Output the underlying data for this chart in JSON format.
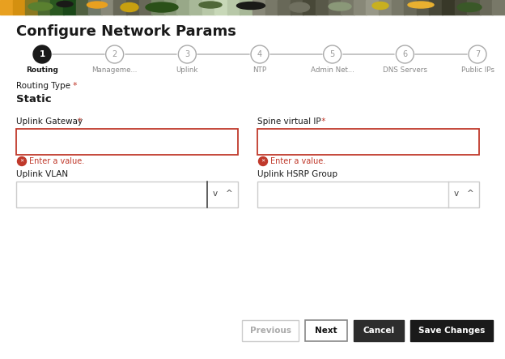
{
  "title": "Configure Network Params",
  "bg_color": "#ffffff",
  "steps": [
    {
      "num": "1",
      "label": "Routing",
      "active": true
    },
    {
      "num": "2",
      "label": "Manageme...",
      "active": false
    },
    {
      "num": "3",
      "label": "Uplink",
      "active": false
    },
    {
      "num": "4",
      "label": "NTP",
      "active": false
    },
    {
      "num": "5",
      "label": "Admin Net...",
      "active": false
    },
    {
      "num": "6",
      "label": "DNS Servers",
      "active": false
    },
    {
      "num": "7",
      "label": "Public IPs",
      "active": false
    }
  ],
  "routing_type_label": "Routing Type",
  "routing_type_asterisk": " *",
  "routing_type_value": "Static",
  "field_left_1_label": "Uplink Gateway",
  "field_left_1_error_msg": "Enter a value.",
  "field_right_1_label": "Spine virtual IP",
  "field_right_1_error_msg": "Enter a value.",
  "field_left_2_label": "Uplink VLAN",
  "field_right_2_label": "Uplink HSRP Group",
  "error_color": "#c0392b",
  "active_step_bg": "#1a1a1a",
  "active_step_text": "#ffffff",
  "inactive_step_border": "#aaaaaa",
  "inactive_step_text": "#999999",
  "inactive_label_color": "#888888",
  "active_label_color": "#1a1a1a",
  "line_color": "#bbbbbb",
  "text_color_dark": "#1a1a1a",
  "field_border_error": "#c0392b",
  "field_border_normal": "#cccccc",
  "spinner_divider_color": "#333333",
  "spinner_arrow_color": "#444444",
  "btn_prev_text": "#aaaaaa",
  "btn_prev_border": "#cccccc",
  "btn_next_text": "#111111",
  "btn_next_border": "#888888",
  "btn_cancel_bg": "#2d2d2d",
  "btn_cancel_text": "#ffffff",
  "btn_save_bg": "#1a1a1a",
  "btn_save_text": "#ffffff",
  "top_bar_colors": [
    "#e8a020",
    "#d49010",
    "#8a7820",
    "#4a6830",
    "#2a5820",
    "#1a4818",
    "#506040",
    "#707868",
    "#888878",
    "#686858",
    "#585848",
    "#686858",
    "#788868",
    "#889878",
    "#98a888",
    "#a8b898",
    "#b8c8a8",
    "#c8d8b8",
    "#b8c8a8",
    "#a8b898",
    "#888878",
    "#787868",
    "#686858",
    "#585848",
    "#484838",
    "#585848",
    "#686858",
    "#787868",
    "#888878",
    "#989888",
    "#888878",
    "#787868",
    "#686858",
    "#585848",
    "#484838",
    "#383828",
    "#484838",
    "#585848",
    "#686858",
    "#787868"
  ]
}
